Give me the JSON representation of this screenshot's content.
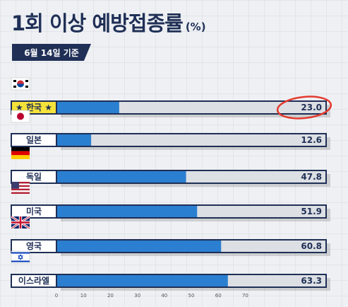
{
  "header": {
    "title": "1회 이상 예방접종률",
    "unit": "(%)",
    "date_badge": "6월 14일 기준"
  },
  "colors": {
    "navy": "#1f2f56",
    "bar_fill": "#2b7fd0",
    "track": "#dcdfe3",
    "highlight_label": "#f5e23a",
    "highlight_circle": "#e33a2e"
  },
  "chart_data": {
    "type": "bar",
    "orientation": "horizontal",
    "title": "1회 이상 예방접종률 (%)",
    "subtitle": "6월 14일 기준",
    "categories": [
      "한국",
      "일본",
      "독일",
      "미국",
      "영국",
      "이스라엘"
    ],
    "category_labels": [
      "★ 한국 ★",
      "일본",
      "독일",
      "미국",
      "영국",
      "이스라엘"
    ],
    "flags": [
      "south-korea-flag",
      "japan-flag",
      "germany-flag",
      "usa-flag",
      "uk-flag",
      "israel-flag"
    ],
    "values": [
      23.0,
      12.6,
      47.8,
      51.9,
      60.8,
      63.3
    ],
    "value_labels": [
      "23.0",
      "12.6",
      "47.8",
      "51.9",
      "60.8",
      "63.3"
    ],
    "highlight": "한국",
    "xlim": [
      0,
      100
    ],
    "xticks": [
      0,
      10,
      20,
      30,
      40,
      50,
      60,
      70
    ],
    "grid": false,
    "legend": "none"
  }
}
